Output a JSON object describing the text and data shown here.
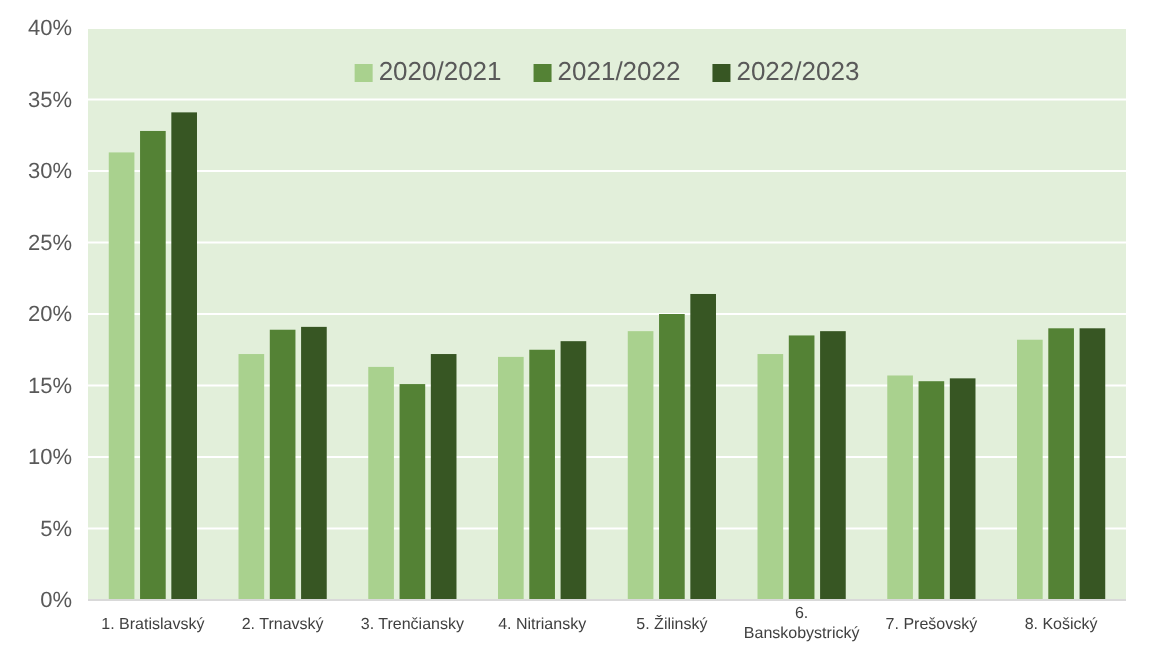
{
  "chart_data": {
    "type": "bar",
    "categories": [
      "1. Bratislavský",
      "2. Trnavský",
      "3. Trenčiansky",
      "4. Nitriansky",
      "5. Žilinský",
      "6. Banskobystrický",
      "7. Prešovský",
      "8. Košický"
    ],
    "series": [
      {
        "name": "2020/2021",
        "color": "#a9d18e",
        "values": [
          31.3,
          17.2,
          16.3,
          17.0,
          18.8,
          17.2,
          15.7,
          18.2
        ]
      },
      {
        "name": "2021/2022",
        "color": "#548235",
        "values": [
          32.8,
          18.9,
          15.1,
          17.5,
          20.0,
          18.5,
          15.3,
          19.0
        ]
      },
      {
        "name": "2022/2023",
        "color": "#375623",
        "values": [
          34.1,
          19.1,
          17.2,
          18.1,
          21.4,
          18.8,
          15.5,
          19.0
        ]
      }
    ],
    "ylim": [
      0,
      40
    ],
    "yticks": [
      {
        "value": 0,
        "label": "0%"
      },
      {
        "value": 5,
        "label": "5%"
      },
      {
        "value": 10,
        "label": "10%"
      },
      {
        "value": 15,
        "label": "15%"
      },
      {
        "value": 20,
        "label": "20%"
      },
      {
        "value": 25,
        "label": "25%"
      },
      {
        "value": 30,
        "label": "30%"
      },
      {
        "value": 35,
        "label": "35%"
      },
      {
        "value": 40,
        "label": "40%"
      }
    ],
    "grid": "y",
    "legend": "top"
  }
}
